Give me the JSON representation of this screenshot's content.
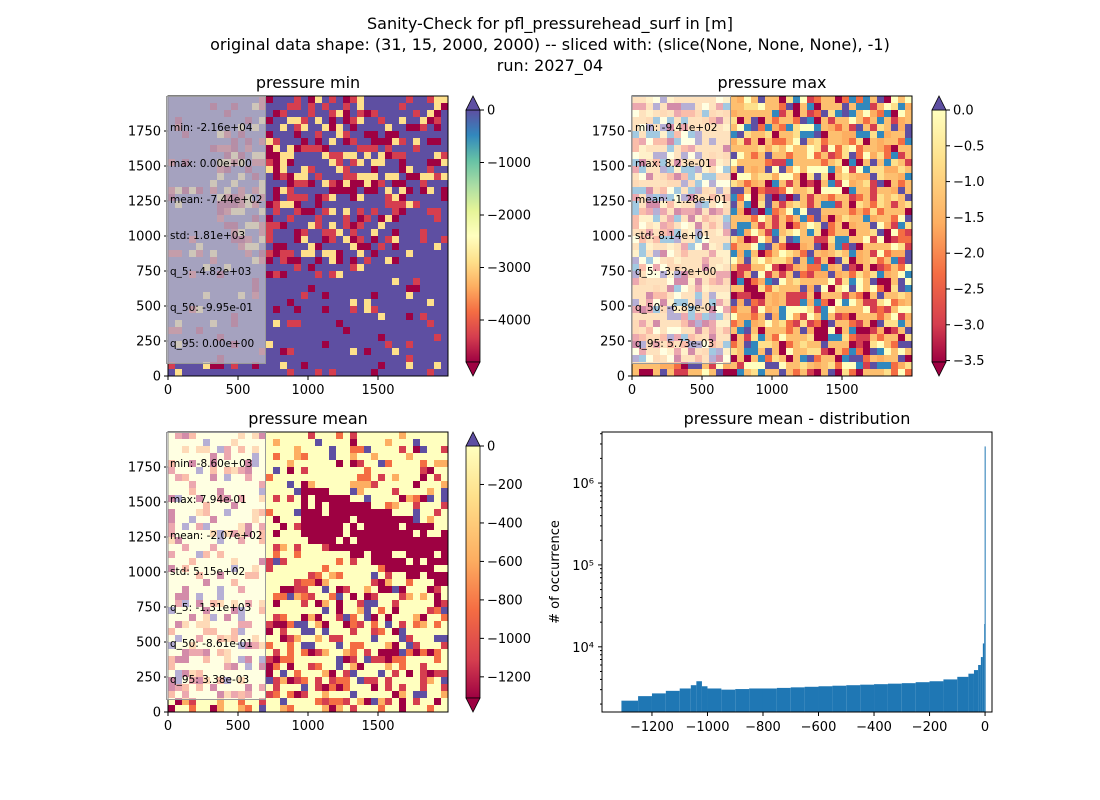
{
  "figure": {
    "title_lines": [
      "Sanity-Check for pfl_pressurehead_surf in [m]",
      "original data shape: (31, 15, 2000, 2000) -- sliced with: (slice(None, None, None), -1)",
      "run: 2027_04"
    ]
  },
  "chart_data": [
    {
      "type": "heatmap",
      "title": "pressure min",
      "xticks": [
        0,
        500,
        1000,
        1500
      ],
      "yticks": [
        0,
        250,
        500,
        750,
        1000,
        1250,
        1500,
        1750
      ],
      "xlim": [
        0,
        2000
      ],
      "ylim": [
        0,
        2000
      ],
      "colorbar": {
        "colormap": "Spectral",
        "range": [
          -4800,
          0
        ],
        "ticks": [
          0,
          -1000,
          -2000,
          -3000,
          -4000
        ],
        "tick_labels": [
          "0",
          "−1000",
          "−2000",
          "−3000",
          "−4000"
        ],
        "extend": "both"
      },
      "stats": [
        "min: -2.16e+04",
        "max: 0.00e+00",
        "mean: -7.44e+02",
        "std: 1.81e+03",
        "q_5: -4.82e+03",
        "q_50: -9.95e-01",
        "q_95: 0.00e+00"
      ]
    },
    {
      "type": "heatmap",
      "title": "pressure max",
      "xticks": [
        0,
        500,
        1000,
        1500
      ],
      "yticks": [
        0,
        250,
        500,
        750,
        1000,
        1250,
        1500,
        1750
      ],
      "xlim": [
        0,
        2000
      ],
      "ylim": [
        0,
        2000
      ],
      "colorbar": {
        "colormap": "Spectral",
        "range": [
          -3.52,
          0.0
        ],
        "ticks": [
          0.0,
          -0.5,
          -1.0,
          -1.5,
          -2.0,
          -2.5,
          -3.0,
          -3.5
        ],
        "tick_labels": [
          "0.0",
          "−0.5",
          "−1.0",
          "−1.5",
          "−2.0",
          "−2.5",
          "−3.0",
          "−3.5"
        ],
        "extend": "both"
      },
      "stats": [
        "min: -9.41e+02",
        "max: 8.23e-01",
        "mean: -1.28e+01",
        "std: 8.14e+01",
        "q_5: -3.52e+00",
        "q_50: -6.89e-01",
        "q_95: 5.73e-03"
      ]
    },
    {
      "type": "heatmap",
      "title": "pressure mean",
      "xticks": [
        0,
        500,
        1000,
        1500
      ],
      "yticks": [
        0,
        250,
        500,
        750,
        1000,
        1250,
        1500,
        1750
      ],
      "xlim": [
        0,
        2000
      ],
      "ylim": [
        0,
        2000
      ],
      "colorbar": {
        "colormap": "Spectral",
        "range": [
          -1310,
          0
        ],
        "ticks": [
          0,
          -200,
          -400,
          -600,
          -800,
          -1000,
          -1200
        ],
        "tick_labels": [
          "0",
          "−200",
          "−400",
          "−600",
          "−800",
          "−1000",
          "−1200"
        ],
        "extend": "both"
      },
      "stats": [
        "min: -8.60e+03",
        "max: 7.94e-01",
        "mean: -2.07e+02",
        "std: 5.15e+02",
        "q_5: -1.31e+03",
        "q_50: -8.61e-01",
        "q_95: 3.38e-03"
      ]
    },
    {
      "type": "bar",
      "title": "pressure mean - distribution",
      "ylabel": "# of occurrence",
      "xlabel": "",
      "yscale": "log",
      "xlim": [
        -1380,
        25
      ],
      "ylim": [
        1600,
        4200000
      ],
      "xticks": [
        -1200,
        -1000,
        -800,
        -600,
        -400,
        -200,
        0
      ],
      "xtick_labels": [
        "−1200",
        "−1000",
        "−800",
        "−600",
        "−400",
        "−200",
        "0"
      ],
      "yticks": [
        10000,
        100000,
        1000000
      ],
      "ytick_labels": [
        "10⁴",
        "10⁵",
        "10⁶"
      ],
      "color": "#1f77b4",
      "bin_range": [
        -1310,
        3
      ],
      "bins": [
        {
          "x": -1310,
          "y": 2200
        },
        {
          "x": -1250,
          "y": 2500
        },
        {
          "x": -1200,
          "y": 2700
        },
        {
          "x": -1150,
          "y": 2900
        },
        {
          "x": -1100,
          "y": 3100
        },
        {
          "x": -1060,
          "y": 3400
        },
        {
          "x": -1040,
          "y": 3800
        },
        {
          "x": -1020,
          "y": 3300
        },
        {
          "x": -1000,
          "y": 3100
        },
        {
          "x": -950,
          "y": 3000
        },
        {
          "x": -900,
          "y": 3050
        },
        {
          "x": -850,
          "y": 3100
        },
        {
          "x": -800,
          "y": 3100
        },
        {
          "x": -750,
          "y": 3150
        },
        {
          "x": -700,
          "y": 3200
        },
        {
          "x": -650,
          "y": 3250
        },
        {
          "x": -600,
          "y": 3300
        },
        {
          "x": -550,
          "y": 3350
        },
        {
          "x": -500,
          "y": 3400
        },
        {
          "x": -450,
          "y": 3450
        },
        {
          "x": -400,
          "y": 3500
        },
        {
          "x": -350,
          "y": 3550
        },
        {
          "x": -300,
          "y": 3600
        },
        {
          "x": -250,
          "y": 3700
        },
        {
          "x": -200,
          "y": 3800
        },
        {
          "x": -150,
          "y": 4000
        },
        {
          "x": -100,
          "y": 4300
        },
        {
          "x": -60,
          "y": 4700
        },
        {
          "x": -40,
          "y": 5200
        },
        {
          "x": -25,
          "y": 6000
        },
        {
          "x": -15,
          "y": 7500
        },
        {
          "x": -8,
          "y": 11000
        },
        {
          "x": -3,
          "y": 19000
        },
        {
          "x": 0,
          "y": 2800000
        }
      ]
    }
  ]
}
